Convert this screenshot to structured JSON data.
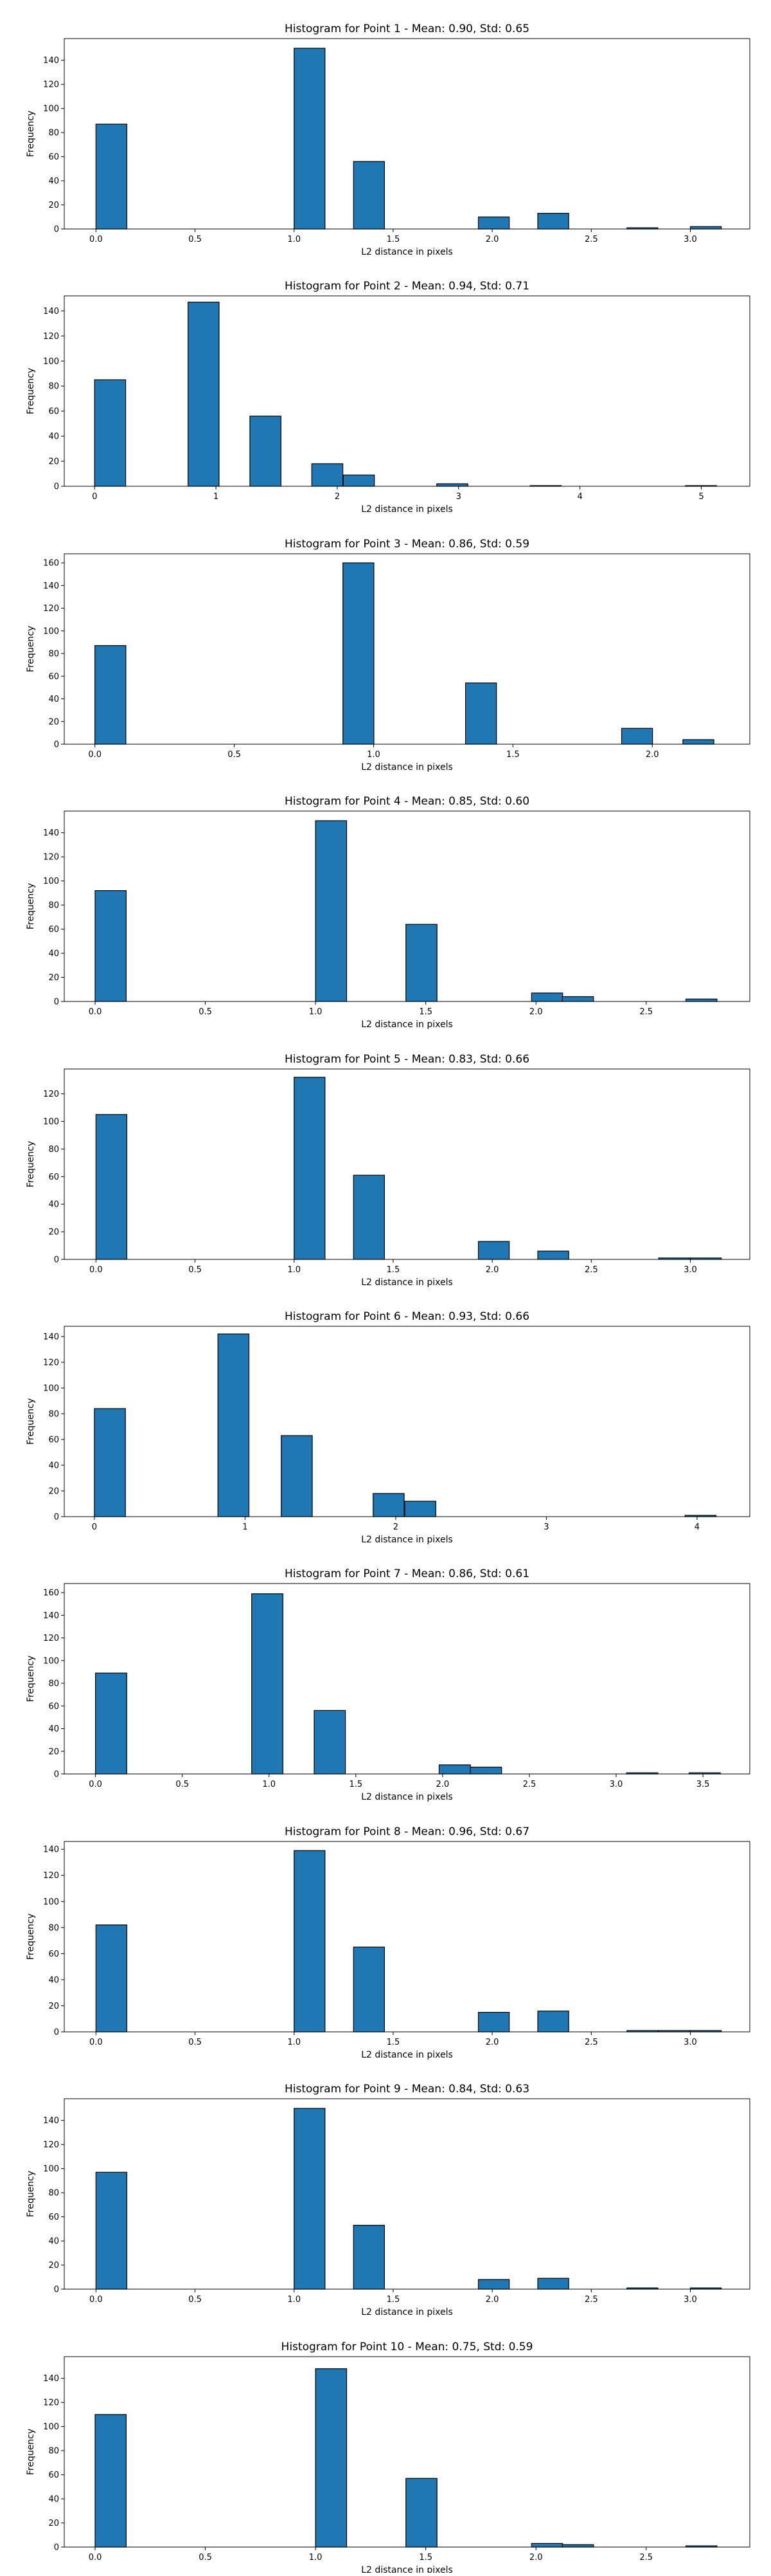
{
  "figure": {
    "background": "#ffffff",
    "bar_color": "#1f77b4",
    "bar_edge_color": "#000000"
  },
  "chart_data": [
    {
      "type": "bar",
      "title": "Histogram for Point 1 - Mean: 0.90, Std: 0.65",
      "xlabel": "L2 distance in pixels",
      "ylabel": "Frequency",
      "xlim": [
        -0.16,
        3.3
      ],
      "ylim": [
        0,
        158
      ],
      "xticks": [
        "0.0",
        "0.5",
        "1.0",
        "1.5",
        "2.0",
        "2.5",
        "3.0"
      ],
      "yticks": [
        "0",
        "20",
        "40",
        "60",
        "80",
        "100",
        "120",
        "140"
      ],
      "bin_width": 0.156,
      "bins": [
        {
          "x": 0.0,
          "count": 87
        },
        {
          "x": 1.0,
          "count": 150
        },
        {
          "x": 1.3,
          "count": 56
        },
        {
          "x": 1.93,
          "count": 10
        },
        {
          "x": 2.23,
          "count": 13
        },
        {
          "x": 2.68,
          "count": 1
        },
        {
          "x": 3.0,
          "count": 2
        }
      ]
    },
    {
      "type": "bar",
      "title": "Histogram for Point 2 - Mean: 0.94, Std: 0.71",
      "xlabel": "L2 distance in pixels",
      "ylabel": "Frequency",
      "xlim": [
        -0.25,
        5.4
      ],
      "ylim": [
        0,
        152
      ],
      "xticks": [
        "0",
        "1",
        "2",
        "3",
        "4",
        "5"
      ],
      "yticks": [
        "0",
        "20",
        "40",
        "60",
        "80",
        "100",
        "120",
        "140"
      ],
      "bin_width": 0.256,
      "bins": [
        {
          "x": 0.0,
          "count": 85
        },
        {
          "x": 0.77,
          "count": 147
        },
        {
          "x": 1.28,
          "count": 56
        },
        {
          "x": 1.79,
          "count": 18
        },
        {
          "x": 2.05,
          "count": 9
        },
        {
          "x": 2.82,
          "count": 2
        },
        {
          "x": 3.59,
          "count": 0.5
        },
        {
          "x": 4.87,
          "count": 0.5
        }
      ]
    },
    {
      "type": "bar",
      "title": "Histogram for Point 3 - Mean: 0.86, Std: 0.59",
      "xlabel": "L2 distance in pixels",
      "ylabel": "Frequency",
      "xlim": [
        -0.11,
        2.35
      ],
      "ylim": [
        0,
        168
      ],
      "xticks": [
        "0.0",
        "0.5",
        "1.0",
        "1.5",
        "2.0"
      ],
      "yticks": [
        "0",
        "20",
        "40",
        "60",
        "80",
        "100",
        "120",
        "140",
        "160"
      ],
      "bin_width": 0.111,
      "bins": [
        {
          "x": 0.0,
          "count": 87
        },
        {
          "x": 0.89,
          "count": 160
        },
        {
          "x": 1.33,
          "count": 54
        },
        {
          "x": 1.89,
          "count": 14
        },
        {
          "x": 2.11,
          "count": 4
        }
      ]
    },
    {
      "type": "bar",
      "title": "Histogram for Point 4 - Mean: 0.85, Std: 0.60",
      "xlabel": "L2 distance in pixels",
      "ylabel": "Frequency",
      "xlim": [
        -0.14,
        2.97
      ],
      "ylim": [
        0,
        158
      ],
      "xticks": [
        "0.0",
        "0.5",
        "1.0",
        "1.5",
        "2.0",
        "2.5"
      ],
      "yticks": [
        "0",
        "20",
        "40",
        "60",
        "80",
        "100",
        "120",
        "140"
      ],
      "bin_width": 0.141,
      "bins": [
        {
          "x": 0.0,
          "count": 92
        },
        {
          "x": 1.0,
          "count": 150
        },
        {
          "x": 1.41,
          "count": 64
        },
        {
          "x": 1.98,
          "count": 7
        },
        {
          "x": 2.12,
          "count": 4
        },
        {
          "x": 2.68,
          "count": 2
        }
      ]
    },
    {
      "type": "bar",
      "title": "Histogram for Point 5 - Mean: 0.83, Std: 0.66",
      "xlabel": "L2 distance in pixels",
      "ylabel": "Frequency",
      "xlim": [
        -0.16,
        3.3
      ],
      "ylim": [
        0,
        138
      ],
      "xticks": [
        "0.0",
        "0.5",
        "1.0",
        "1.5",
        "2.0",
        "2.5",
        "3.0"
      ],
      "yticks": [
        "0",
        "20",
        "40",
        "60",
        "80",
        "100",
        "120"
      ],
      "bin_width": 0.156,
      "bins": [
        {
          "x": 0.0,
          "count": 105
        },
        {
          "x": 1.0,
          "count": 132
        },
        {
          "x": 1.3,
          "count": 61
        },
        {
          "x": 1.93,
          "count": 13
        },
        {
          "x": 2.23,
          "count": 6
        },
        {
          "x": 2.84,
          "count": 1
        },
        {
          "x": 3.0,
          "count": 1
        }
      ]
    },
    {
      "type": "bar",
      "title": "Histogram for Point 6 - Mean: 0.93, Std: 0.66",
      "xlabel": "L2 distance in pixels",
      "ylabel": "Frequency",
      "xlim": [
        -0.2,
        4.35
      ],
      "ylim": [
        0,
        148
      ],
      "xticks": [
        "0",
        "1",
        "2",
        "3",
        "4"
      ],
      "yticks": [
        "0",
        "20",
        "40",
        "60",
        "80",
        "100",
        "120",
        "140"
      ],
      "bin_width": 0.206,
      "bins": [
        {
          "x": 0.0,
          "count": 84
        },
        {
          "x": 0.82,
          "count": 142
        },
        {
          "x": 1.24,
          "count": 63
        },
        {
          "x": 1.85,
          "count": 18
        },
        {
          "x": 2.06,
          "count": 12
        },
        {
          "x": 3.92,
          "count": 1
        }
      ]
    },
    {
      "type": "bar",
      "title": "Histogram for Point 7 - Mean: 0.86, Std: 0.61",
      "xlabel": "L2 distance in pixels",
      "ylabel": "Frequency",
      "xlim": [
        -0.18,
        3.77
      ],
      "ylim": [
        0,
        168
      ],
      "xticks": [
        "0.0",
        "0.5",
        "1.0",
        "1.5",
        "2.0",
        "2.5",
        "3.0",
        "3.5"
      ],
      "yticks": [
        "0",
        "20",
        "40",
        "60",
        "80",
        "100",
        "120",
        "140",
        "160"
      ],
      "bin_width": 0.18,
      "bins": [
        {
          "x": 0.0,
          "count": 89
        },
        {
          "x": 0.9,
          "count": 159
        },
        {
          "x": 1.26,
          "count": 56
        },
        {
          "x": 1.98,
          "count": 8
        },
        {
          "x": 2.16,
          "count": 6
        },
        {
          "x": 3.06,
          "count": 1
        },
        {
          "x": 3.42,
          "count": 1
        }
      ]
    },
    {
      "type": "bar",
      "title": "Histogram for Point 8 - Mean: 0.96, Std: 0.67",
      "xlabel": "L2 distance in pixels",
      "ylabel": "Frequency",
      "xlim": [
        -0.16,
        3.3
      ],
      "ylim": [
        0,
        146
      ],
      "xticks": [
        "0.0",
        "0.5",
        "1.0",
        "1.5",
        "2.0",
        "2.5",
        "3.0"
      ],
      "yticks": [
        "0",
        "20",
        "40",
        "60",
        "80",
        "100",
        "120",
        "140"
      ],
      "bin_width": 0.156,
      "bins": [
        {
          "x": 0.0,
          "count": 82
        },
        {
          "x": 1.0,
          "count": 139
        },
        {
          "x": 1.3,
          "count": 65
        },
        {
          "x": 1.93,
          "count": 15
        },
        {
          "x": 2.23,
          "count": 16
        },
        {
          "x": 2.68,
          "count": 1
        },
        {
          "x": 2.84,
          "count": 1
        },
        {
          "x": 3.0,
          "count": 1
        }
      ]
    },
    {
      "type": "bar",
      "title": "Histogram for Point 9 - Mean: 0.84, Std: 0.63",
      "xlabel": "L2 distance in pixels",
      "ylabel": "Frequency",
      "xlim": [
        -0.16,
        3.3
      ],
      "ylim": [
        0,
        158
      ],
      "xticks": [
        "0.0",
        "0.5",
        "1.0",
        "1.5",
        "2.0",
        "2.5",
        "3.0"
      ],
      "yticks": [
        "0",
        "20",
        "40",
        "60",
        "80",
        "100",
        "120",
        "140"
      ],
      "bin_width": 0.156,
      "bins": [
        {
          "x": 0.0,
          "count": 97
        },
        {
          "x": 1.0,
          "count": 150
        },
        {
          "x": 1.3,
          "count": 53
        },
        {
          "x": 1.93,
          "count": 8
        },
        {
          "x": 2.23,
          "count": 9
        },
        {
          "x": 2.68,
          "count": 1
        },
        {
          "x": 3.0,
          "count": 1
        }
      ]
    },
    {
      "type": "bar",
      "title": "Histogram for Point 10 - Mean: 0.75, Std: 0.59",
      "xlabel": "L2 distance in pixels",
      "ylabel": "Frequency",
      "xlim": [
        -0.14,
        2.97
      ],
      "ylim": [
        0,
        158
      ],
      "xticks": [
        "0.0",
        "0.5",
        "1.0",
        "1.5",
        "2.0",
        "2.5"
      ],
      "yticks": [
        "0",
        "20",
        "40",
        "60",
        "80",
        "100",
        "120",
        "140"
      ],
      "bin_width": 0.141,
      "bins": [
        {
          "x": 0.0,
          "count": 110
        },
        {
          "x": 1.0,
          "count": 148
        },
        {
          "x": 1.41,
          "count": 57
        },
        {
          "x": 1.98,
          "count": 3
        },
        {
          "x": 2.12,
          "count": 2
        },
        {
          "x": 2.68,
          "count": 1
        }
      ]
    }
  ]
}
